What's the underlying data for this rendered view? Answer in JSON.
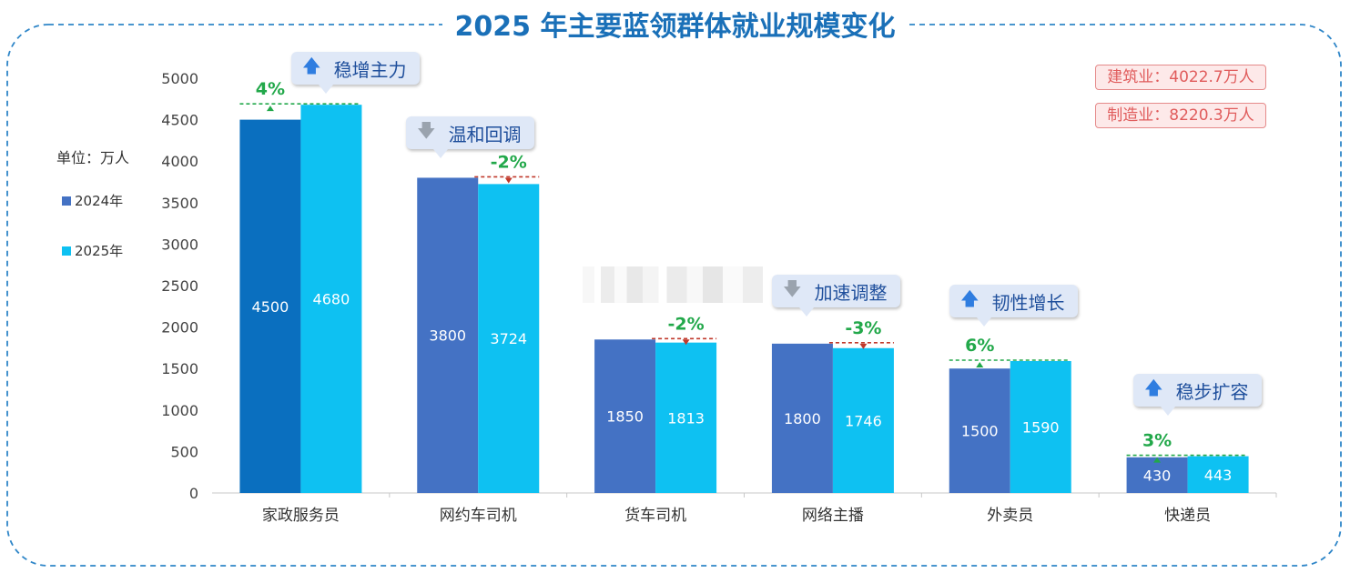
{
  "title": "2025 年主要蓝领群体就业规模变化",
  "unit_label": "单位：万人",
  "notes": [
    "建筑业：4022.7万人",
    "制造业：8220.3万人"
  ],
  "colors": {
    "primary_2024": "#4472c4",
    "highlight_2024": "#0a6fbf",
    "series_2025": "#0ec1f2",
    "up": "#22a84a",
    "down": "#c0392b",
    "title": "#1a70b8"
  },
  "chart_data": {
    "type": "bar",
    "categories": [
      "家政服务员",
      "网约车司机",
      "货车司机",
      "网络主播",
      "外卖员",
      "快递员"
    ],
    "series": [
      {
        "name": "2024年",
        "values": [
          4500,
          3800,
          1850,
          1800,
          1500,
          430
        ]
      },
      {
        "name": "2025年",
        "values": [
          4680,
          3724,
          1813,
          1746,
          1590,
          443
        ]
      }
    ],
    "changes": [
      "4%",
      "-2%",
      "-2%",
      "-3%",
      "6%",
      "3%"
    ],
    "trend": [
      "up",
      "down",
      "down",
      "down",
      "up",
      "up"
    ],
    "callouts": [
      {
        "category": "家政服务员",
        "text": "稳增主力",
        "icon": "up-arrow-icon"
      },
      {
        "category": "网约车司机",
        "text": "温和回调",
        "icon": "down-arrow-icon"
      },
      {
        "category": "网络主播",
        "text": "加速调整",
        "icon": "down-arrow-icon"
      },
      {
        "category": "外卖员",
        "text": "韧性增长",
        "icon": "up-arrow-icon"
      },
      {
        "category": "快递员",
        "text": "稳步扩容",
        "icon": "up-arrow-icon"
      }
    ],
    "ylim": [
      0,
      5000
    ],
    "yticks": [
      0,
      500,
      1000,
      1500,
      2000,
      2500,
      3000,
      3500,
      4000,
      4500,
      5000
    ],
    "grid": false,
    "legend": "left"
  }
}
